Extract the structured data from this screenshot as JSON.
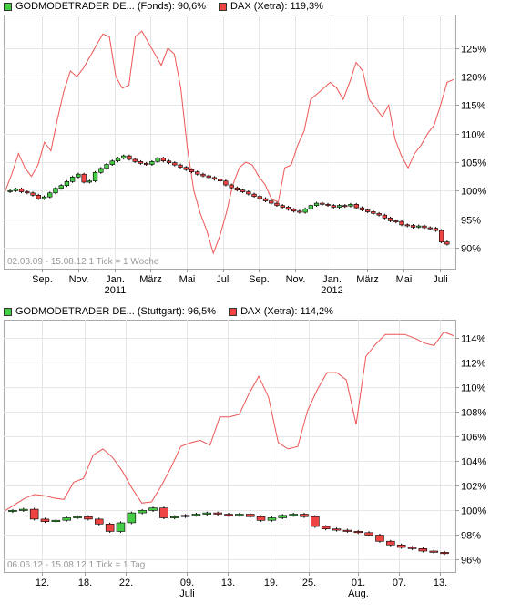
{
  "chart_data": [
    {
      "type": "line",
      "legend": [
        {
          "label": "GODMODETRADER DE... (Fonds): 90,6%",
          "color": "#44cc44"
        },
        {
          "label": "DAX (Xetra): 119,3%",
          "color": "#ee4444"
        }
      ],
      "range_label": "02.03.09 - 15.08.12   1 Tick = 1 Woche",
      "y_ticks": [
        "125%",
        "120%",
        "115%",
        "110%",
        "105%",
        "100%",
        "95%",
        "90%"
      ],
      "y_tick_values": [
        125,
        120,
        115,
        110,
        105,
        100,
        95,
        90
      ],
      "ylim": [
        86.3,
        130.9
      ],
      "x_tick_labels": [
        "Sep.",
        "Nov.",
        "Jan.",
        "März",
        "Mai",
        "Juli",
        "Sep.",
        "Nov.",
        "Jan.",
        "März",
        "Mai",
        "Juli"
      ],
      "x_tick_years": [
        "",
        "",
        "2011",
        "",
        "",
        "",
        "",
        "",
        "2012",
        "",
        "",
        ""
      ],
      "x_tick_pos": [
        0.085,
        0.165,
        0.245,
        0.325,
        0.405,
        0.485,
        0.565,
        0.645,
        0.725,
        0.805,
        0.885,
        0.965
      ],
      "series": [
        {
          "name": "DAX (Xetra)",
          "style": "line",
          "color": "#ee5555",
          "values": [
            100.0,
            103.0,
            106.5,
            104.0,
            102.5,
            104.5,
            108.5,
            107.0,
            112.5,
            117.5,
            121.0,
            120.0,
            121.5,
            123.5,
            125.5,
            127.5,
            127.0,
            120.0,
            118.0,
            118.5,
            127.0,
            128.0,
            126.0,
            124.0,
            122.0,
            125.0,
            124.0,
            118.0,
            107.5,
            100.0,
            96.0,
            93.0,
            89.0,
            92.0,
            96.0,
            101.0,
            104.0,
            105.0,
            104.5,
            102.5,
            101.0,
            98.5,
            98.0,
            104.0,
            104.5,
            108.0,
            110.5,
            116.0,
            117.0,
            118.0,
            119.0,
            118.0,
            116.0,
            119.0,
            122.5,
            121.0,
            116.0,
            114.5,
            113.0,
            115.0,
            109.0,
            106.0,
            104.0,
            106.5,
            108.0,
            110.0,
            111.5,
            115.0,
            119.0,
            119.5
          ]
        },
        {
          "name": "GODMODETRADER DE... (Fonds)",
          "style": "candle",
          "up_color": "#44cc44",
          "down_color": "#ee4444",
          "values": [
            100.0,
            100.3,
            99.8,
            99.6,
            99.2,
            98.6,
            98.9,
            99.6,
            100.4,
            100.9,
            101.6,
            102.4,
            102.9,
            101.5,
            101.7,
            103.2,
            103.9,
            104.6,
            105.2,
            105.7,
            106.1,
            105.5,
            105.1,
            104.8,
            104.6,
            105.1,
            105.7,
            105.2,
            104.9,
            104.5,
            104.1,
            103.7,
            103.3,
            102.9,
            102.6,
            102.3,
            102.0,
            101.7,
            101.0,
            100.5,
            100.1,
            99.8,
            99.4,
            99.0,
            98.6,
            98.2,
            97.8,
            97.4,
            97.1,
            96.7,
            96.4,
            96.2,
            96.8,
            97.4,
            97.8,
            97.6,
            97.4,
            97.1,
            97.4,
            97.3,
            97.6,
            97.0,
            96.6,
            96.3,
            96.0,
            95.7,
            95.2,
            94.7,
            94.6,
            94.0,
            93.9,
            93.6,
            93.8,
            93.5,
            93.4,
            93.0,
            91.0,
            90.6
          ]
        }
      ]
    },
    {
      "type": "line",
      "legend": [
        {
          "label": "GODMODETRADER DE... (Stuttgart): 96,5%",
          "color": "#44cc44"
        },
        {
          "label": "DAX (Xetra): 114,2%",
          "color": "#ee4444"
        }
      ],
      "range_label": "06.06.12 - 15.08.12   1 Tick = 1 Tag",
      "y_ticks": [
        "114%",
        "112%",
        "110%",
        "108%",
        "106%",
        "104%",
        "102%",
        "100%",
        "98%",
        "96%"
      ],
      "y_tick_values": [
        114,
        112,
        110,
        108,
        106,
        104,
        102,
        100,
        98,
        96
      ],
      "ylim": [
        95.0,
        115.5
      ],
      "x_tick_labels": [
        "12.",
        "18.",
        "22.",
        "09.",
        "13.",
        "19.",
        "25.",
        "01.",
        "07.",
        "13."
      ],
      "x_tick_years": [
        "",
        "",
        "",
        "Juli",
        "",
        "",
        "",
        "Aug.",
        "",
        ""
      ],
      "x_tick_pos": [
        0.085,
        0.18,
        0.27,
        0.405,
        0.495,
        0.59,
        0.675,
        0.785,
        0.875,
        0.965
      ],
      "series": [
        {
          "name": "DAX (Xetra)",
          "style": "line",
          "color": "#ee5555",
          "values": [
            100.0,
            100.5,
            101.0,
            101.3,
            101.2,
            101.0,
            100.9,
            102.3,
            102.6,
            104.5,
            105.0,
            104.3,
            103.2,
            101.8,
            100.6,
            100.7,
            102.0,
            103.5,
            105.2,
            105.5,
            105.7,
            105.3,
            107.6,
            107.6,
            107.8,
            109.5,
            110.9,
            109.2,
            105.5,
            105.0,
            105.2,
            108.1,
            109.8,
            111.2,
            111.2,
            110.6,
            107.0,
            112.5,
            113.5,
            114.3,
            114.3,
            114.3,
            114.0,
            113.6,
            113.4,
            114.5,
            114.2
          ]
        },
        {
          "name": "GODMODETRADER DE... (Stuttgart)",
          "style": "candle",
          "up_color": "#44cc44",
          "down_color": "#ee4444",
          "values": [
            100.0,
            100.1,
            99.3,
            99.1,
            99.2,
            99.4,
            99.5,
            99.3,
            98.9,
            98.3,
            99.0,
            99.8,
            100.0,
            100.2,
            99.4,
            99.5,
            99.6,
            99.7,
            99.8,
            99.7,
            99.6,
            99.7,
            99.5,
            99.2,
            99.4,
            99.6,
            99.7,
            99.5,
            98.7,
            98.5,
            98.4,
            98.3,
            98.2,
            98.0,
            97.5,
            97.2,
            97.0,
            96.9,
            96.7,
            96.6,
            96.5
          ]
        }
      ]
    }
  ]
}
